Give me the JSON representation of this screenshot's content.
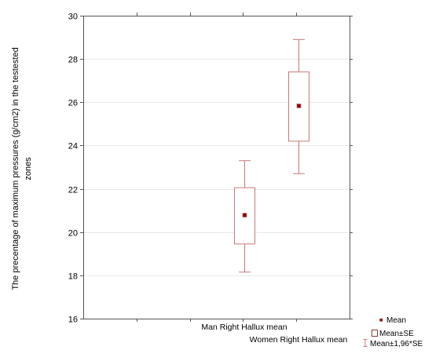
{
  "chart_data": {
    "type": "box",
    "title": "",
    "xlabel": "",
    "ylabel_lines": [
      "The precentage of maximum pressures (g/cm2) in the testested",
      "zones"
    ],
    "ylim": [
      16,
      30
    ],
    "yticks": [
      16,
      18,
      20,
      22,
      24,
      26,
      28,
      30
    ],
    "grid": "horizontal",
    "categories": [
      "Man Right Hallux mean",
      "Women Right Hallux mean"
    ],
    "series": [
      {
        "category": "Man Right Hallux mean",
        "mean": 20.8,
        "se_low": 19.45,
        "se_high": 22.05,
        "ci_low": 18.15,
        "ci_high": 23.3
      },
      {
        "category": "Women Right Hallux mean",
        "mean": 25.85,
        "se_low": 24.2,
        "se_high": 27.4,
        "ci_low": 22.7,
        "ci_high": 28.9
      }
    ],
    "legend": {
      "position": "bottom-right",
      "items": [
        {
          "label": "Mean",
          "symbol": "point"
        },
        {
          "label": "Mean±SE",
          "symbol": "box"
        },
        {
          "label": "Mean±1,96*SE",
          "symbol": "whisker"
        }
      ]
    },
    "colors": {
      "box": "#c87878",
      "whisker": "#c87878",
      "mean_fill": "#8b0000",
      "axis": "#555555",
      "grid": "#e8e8e8",
      "text": "#000000"
    }
  }
}
